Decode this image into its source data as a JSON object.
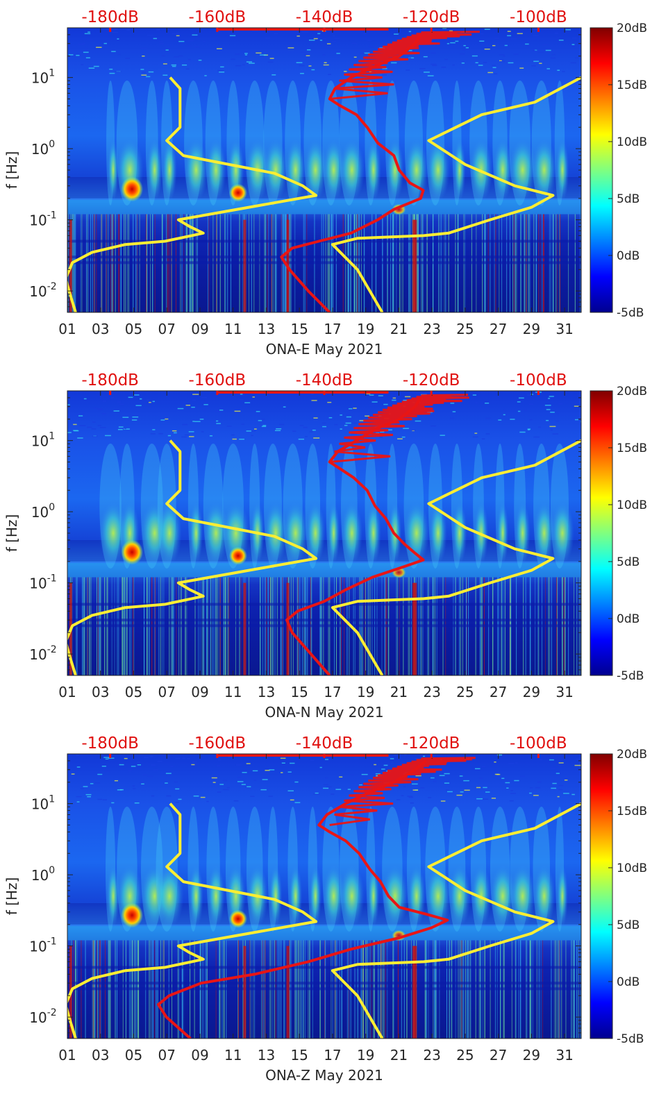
{
  "chart_data": [
    {
      "type": "heatmap",
      "xlabel": "ONA-E May 2021",
      "ylabel": "f [Hz]",
      "x_tick_labels": [
        "01",
        "03",
        "05",
        "07",
        "09",
        "11",
        "13",
        "15",
        "17",
        "19",
        "21",
        "23",
        "25",
        "27",
        "29",
        "31"
      ],
      "x_tick_days": [
        1,
        3,
        5,
        7,
        9,
        11,
        13,
        15,
        17,
        19,
        21,
        23,
        25,
        27,
        29,
        31
      ],
      "y_tick_labels": [
        {
          "base": "10",
          "exp": "1"
        },
        {
          "base": "10",
          "exp": "0"
        },
        {
          "base": "10",
          "exp": "-1"
        },
        {
          "base": "10",
          "exp": "-2"
        }
      ],
      "y_tick_values": [
        10,
        1,
        0.1,
        0.01
      ],
      "xlim": [
        1,
        32
      ],
      "ylim": [
        0.005,
        50
      ],
      "y_scale": "log",
      "top_axis_labels": [
        "-180dB",
        "-160dB",
        "-140dB",
        "-120dB",
        "-100dB"
      ],
      "top_axis_values": [
        -180,
        -160,
        -140,
        -120,
        -100
      ],
      "top_axis_range": [
        -188,
        -92
      ],
      "colorbar": {
        "labels": [
          "20dB",
          "15dB",
          "10dB",
          "5dB",
          "0dB",
          "-5dB"
        ],
        "values": [
          20,
          15,
          10,
          5,
          0,
          -5
        ],
        "range": [
          -5,
          20
        ],
        "colormap": "jet"
      },
      "series": [
        {
          "color": "#ffee33",
          "x_units": "day",
          "points": [
            [
              1.5,
              0.005
            ],
            [
              1.1,
              0.01
            ],
            [
              0.9,
              0.015
            ],
            [
              1.3,
              0.025
            ],
            [
              2.5,
              0.035
            ],
            [
              4.5,
              0.045
            ],
            [
              6.9,
              0.05
            ],
            [
              8.5,
              0.06
            ],
            [
              9.2,
              0.065
            ],
            [
              8.4,
              0.08
            ],
            [
              7.7,
              0.1
            ],
            [
              16.0,
              0.22
            ],
            [
              15.2,
              0.3
            ],
            [
              13.5,
              0.45
            ],
            [
              8.0,
              0.8
            ],
            [
              7.0,
              1.3
            ],
            [
              7.8,
              2.0
            ],
            [
              7.8,
              4.0
            ],
            [
              7.8,
              7.0
            ],
            [
              7.2,
              10.0
            ]
          ]
        },
        {
          "color": "#ffee33",
          "x_units": "day",
          "points": [
            [
              20.0,
              0.005
            ],
            [
              18.5,
              0.02
            ],
            [
              17.0,
              0.045
            ],
            [
              18.5,
              0.055
            ],
            [
              22.5,
              0.06
            ],
            [
              24.0,
              0.065
            ],
            [
              26.5,
              0.1
            ],
            [
              29.0,
              0.15
            ],
            [
              30.3,
              0.22
            ],
            [
              28.0,
              0.3
            ],
            [
              25.0,
              0.6
            ],
            [
              22.8,
              1.3
            ],
            [
              26.0,
              3.0
            ],
            [
              29.2,
              4.5
            ],
            [
              32.0,
              10.0
            ]
          ]
        },
        {
          "color": "#e81515",
          "x_units": "dB",
          "points": [
            [
              -139.0,
              0.005
            ],
            [
              -143.0,
              0.01
            ],
            [
              -146.5,
              0.02
            ],
            [
              -148.0,
              0.03
            ],
            [
              -146.0,
              0.04
            ],
            [
              -141.0,
              0.05
            ],
            [
              -135.0,
              0.065
            ],
            [
              -130.0,
              0.1
            ],
            [
              -127.0,
              0.14
            ],
            [
              -122.0,
              0.2
            ],
            [
              -121.5,
              0.26
            ],
            [
              -124.0,
              0.33
            ],
            [
              -126.0,
              0.5
            ],
            [
              -127.0,
              0.8
            ],
            [
              -130.0,
              1.2
            ],
            [
              -132.0,
              2.0
            ],
            [
              -134.0,
              3.0
            ],
            [
              -137.0,
              4.0
            ],
            [
              -139.0,
              5.0
            ],
            [
              -138.0,
              7.0
            ],
            [
              -135.0,
              10.0
            ],
            [
              -130.0,
              15.0
            ],
            [
              -126.0,
              20.0
            ],
            [
              -123.0,
              30.0
            ],
            [
              -122.0,
              40.0
            ]
          ]
        }
      ]
    },
    {
      "type": "heatmap",
      "xlabel": "ONA-N May 2021",
      "ylabel": "f [Hz]",
      "x_tick_labels": [
        "01",
        "03",
        "05",
        "07",
        "09",
        "11",
        "13",
        "15",
        "17",
        "19",
        "21",
        "23",
        "25",
        "27",
        "29",
        "31"
      ],
      "x_tick_days": [
        1,
        3,
        5,
        7,
        9,
        11,
        13,
        15,
        17,
        19,
        21,
        23,
        25,
        27,
        29,
        31
      ],
      "y_tick_labels": [
        {
          "base": "10",
          "exp": "1"
        },
        {
          "base": "10",
          "exp": "0"
        },
        {
          "base": "10",
          "exp": "-1"
        },
        {
          "base": "10",
          "exp": "-2"
        }
      ],
      "y_tick_values": [
        10,
        1,
        0.1,
        0.01
      ],
      "xlim": [
        1,
        32
      ],
      "ylim": [
        0.005,
        50
      ],
      "y_scale": "log",
      "top_axis_labels": [
        "-180dB",
        "-160dB",
        "-140dB",
        "-120dB",
        "-100dB"
      ],
      "top_axis_values": [
        -180,
        -160,
        -140,
        -120,
        -100
      ],
      "top_axis_range": [
        -188,
        -92
      ],
      "colorbar": {
        "labels": [
          "20dB",
          "15dB",
          "10dB",
          "5dB",
          "0dB",
          "-5dB"
        ],
        "values": [
          20,
          15,
          10,
          5,
          0,
          -5
        ],
        "range": [
          -5,
          20
        ],
        "colormap": "jet"
      },
      "series": [
        {
          "color": "#ffee33",
          "x_units": "day",
          "points": [
            [
              1.5,
              0.005
            ],
            [
              1.1,
              0.01
            ],
            [
              0.9,
              0.015
            ],
            [
              1.3,
              0.025
            ],
            [
              2.5,
              0.035
            ],
            [
              4.5,
              0.045
            ],
            [
              6.9,
              0.05
            ],
            [
              8.5,
              0.06
            ],
            [
              9.2,
              0.065
            ],
            [
              8.4,
              0.08
            ],
            [
              7.7,
              0.1
            ],
            [
              16.0,
              0.22
            ],
            [
              15.2,
              0.3
            ],
            [
              13.5,
              0.45
            ],
            [
              8.0,
              0.8
            ],
            [
              7.0,
              1.3
            ],
            [
              7.8,
              2.0
            ],
            [
              7.8,
              4.0
            ],
            [
              7.8,
              7.0
            ],
            [
              7.2,
              10.0
            ]
          ]
        },
        {
          "color": "#ffee33",
          "x_units": "day",
          "points": [
            [
              20.0,
              0.005
            ],
            [
              18.5,
              0.02
            ],
            [
              17.0,
              0.045
            ],
            [
              18.5,
              0.055
            ],
            [
              22.5,
              0.06
            ],
            [
              24.0,
              0.065
            ],
            [
              26.5,
              0.1
            ],
            [
              29.0,
              0.15
            ],
            [
              30.3,
              0.22
            ],
            [
              28.0,
              0.3
            ],
            [
              25.0,
              0.6
            ],
            [
              22.8,
              1.3
            ],
            [
              26.0,
              3.0
            ],
            [
              29.2,
              4.5
            ],
            [
              32.0,
              10.0
            ]
          ]
        },
        {
          "color": "#e81515",
          "x_units": "dB",
          "points": [
            [
              -139.0,
              0.005
            ],
            [
              -142.5,
              0.01
            ],
            [
              -146.0,
              0.02
            ],
            [
              -147.0,
              0.03
            ],
            [
              -145.0,
              0.04
            ],
            [
              -140.0,
              0.055
            ],
            [
              -136.0,
              0.08
            ],
            [
              -131.0,
              0.12
            ],
            [
              -125.0,
              0.17
            ],
            [
              -121.5,
              0.21
            ],
            [
              -123.0,
              0.26
            ],
            [
              -125.0,
              0.35
            ],
            [
              -127.0,
              0.5
            ],
            [
              -128.5,
              0.8
            ],
            [
              -130.5,
              1.2
            ],
            [
              -132.0,
              2.0
            ],
            [
              -134.5,
              3.0
            ],
            [
              -137.0,
              4.0
            ],
            [
              -139.0,
              5.0
            ],
            [
              -137.5,
              7.0
            ],
            [
              -134.0,
              10.0
            ],
            [
              -130.0,
              15.0
            ],
            [
              -126.0,
              20.0
            ],
            [
              -123.0,
              30.0
            ],
            [
              -122.0,
              40.0
            ]
          ]
        }
      ]
    },
    {
      "type": "heatmap",
      "xlabel": "ONA-Z May 2021",
      "ylabel": "f [Hz]",
      "x_tick_labels": [
        "01",
        "03",
        "05",
        "07",
        "09",
        "11",
        "13",
        "15",
        "17",
        "19",
        "21",
        "23",
        "25",
        "27",
        "29",
        "31"
      ],
      "x_tick_days": [
        1,
        3,
        5,
        7,
        9,
        11,
        13,
        15,
        17,
        19,
        21,
        23,
        25,
        27,
        29,
        31
      ],
      "y_tick_labels": [
        {
          "base": "10",
          "exp": "1"
        },
        {
          "base": "10",
          "exp": "0"
        },
        {
          "base": "10",
          "exp": "-1"
        },
        {
          "base": "10",
          "exp": "-2"
        }
      ],
      "y_tick_values": [
        10,
        1,
        0.1,
        0.01
      ],
      "xlim": [
        1,
        32
      ],
      "ylim": [
        0.005,
        50
      ],
      "y_scale": "log",
      "top_axis_labels": [
        "-180dB",
        "-160dB",
        "-140dB",
        "-120dB",
        "-100dB"
      ],
      "top_axis_values": [
        -180,
        -160,
        -140,
        -120,
        -100
      ],
      "top_axis_range": [
        -188,
        -92
      ],
      "colorbar": {
        "labels": [
          "20dB",
          "15dB",
          "10dB",
          "5dB",
          "0dB",
          "-5dB"
        ],
        "values": [
          20,
          15,
          10,
          5,
          0,
          -5
        ],
        "range": [
          -5,
          20
        ],
        "colormap": "jet"
      },
      "series": [
        {
          "color": "#ffee33",
          "x_units": "day",
          "points": [
            [
              1.5,
              0.005
            ],
            [
              1.1,
              0.01
            ],
            [
              0.9,
              0.015
            ],
            [
              1.3,
              0.025
            ],
            [
              2.5,
              0.035
            ],
            [
              4.5,
              0.045
            ],
            [
              6.9,
              0.05
            ],
            [
              8.5,
              0.06
            ],
            [
              9.2,
              0.065
            ],
            [
              8.4,
              0.08
            ],
            [
              7.7,
              0.1
            ],
            [
              16.0,
              0.22
            ],
            [
              15.2,
              0.3
            ],
            [
              13.5,
              0.45
            ],
            [
              8.0,
              0.8
            ],
            [
              7.0,
              1.3
            ],
            [
              7.8,
              2.0
            ],
            [
              7.8,
              4.0
            ],
            [
              7.8,
              7.0
            ],
            [
              7.2,
              10.0
            ]
          ]
        },
        {
          "color": "#ffee33",
          "x_units": "day",
          "points": [
            [
              20.0,
              0.005
            ],
            [
              18.5,
              0.02
            ],
            [
              17.0,
              0.045
            ],
            [
              18.5,
              0.055
            ],
            [
              22.5,
              0.06
            ],
            [
              24.0,
              0.065
            ],
            [
              26.5,
              0.1
            ],
            [
              29.0,
              0.15
            ],
            [
              30.3,
              0.22
            ],
            [
              28.0,
              0.3
            ],
            [
              25.0,
              0.6
            ],
            [
              22.8,
              1.3
            ],
            [
              26.0,
              3.0
            ],
            [
              29.2,
              4.5
            ],
            [
              32.0,
              10.0
            ]
          ]
        },
        {
          "color": "#e81515",
          "x_units": "dB",
          "points": [
            [
              -165.0,
              0.005
            ],
            [
              -169.5,
              0.01
            ],
            [
              -171.0,
              0.015
            ],
            [
              -169.0,
              0.02
            ],
            [
              -163.0,
              0.03
            ],
            [
              -153.0,
              0.04
            ],
            [
              -143.0,
              0.06
            ],
            [
              -135.0,
              0.09
            ],
            [
              -126.0,
              0.13
            ],
            [
              -120.0,
              0.18
            ],
            [
              -117.0,
              0.23
            ],
            [
              -121.0,
              0.28
            ],
            [
              -126.0,
              0.35
            ],
            [
              -128.0,
              0.5
            ],
            [
              -129.5,
              0.8
            ],
            [
              -131.5,
              1.2
            ],
            [
              -133.5,
              2.0
            ],
            [
              -136.0,
              3.0
            ],
            [
              -139.0,
              4.0
            ],
            [
              -141.0,
              5.0
            ],
            [
              -139.5,
              7.0
            ],
            [
              -136.0,
              10.0
            ],
            [
              -131.0,
              15.0
            ],
            [
              -127.0,
              20.0
            ],
            [
              -123.0,
              30.0
            ],
            [
              -121.0,
              40.0
            ]
          ]
        }
      ]
    }
  ]
}
